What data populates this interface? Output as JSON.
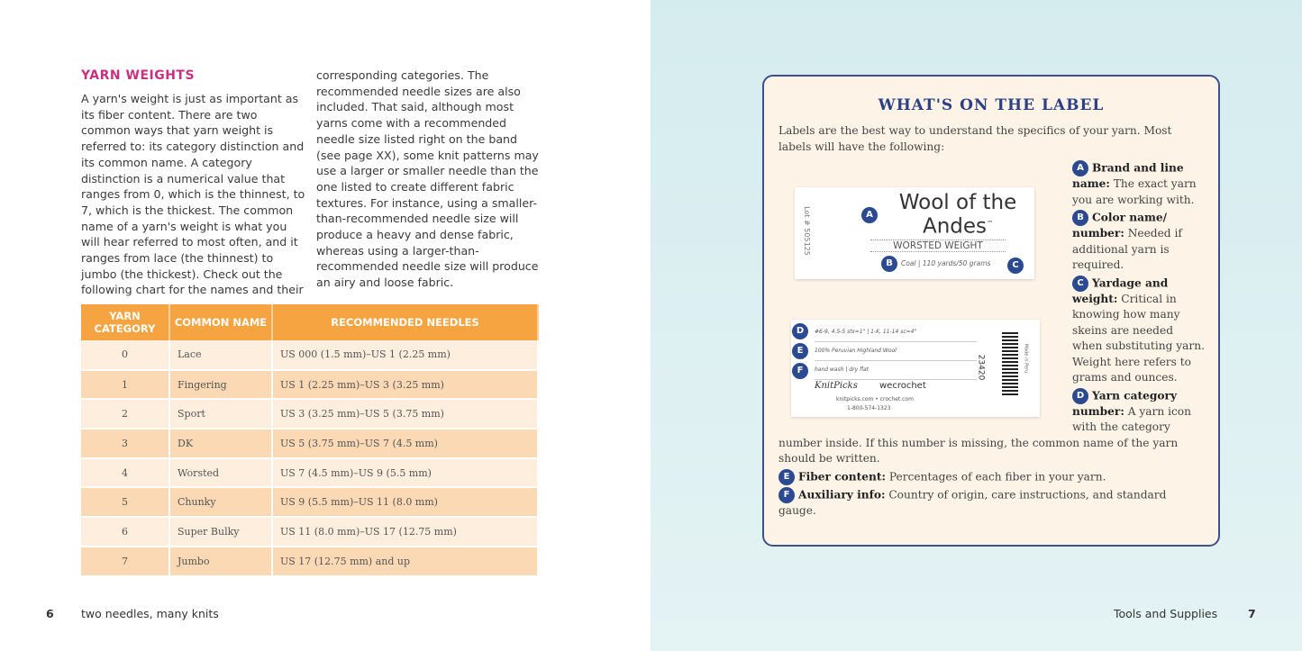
{
  "left_page": {
    "heading": "YARN WEIGHTS",
    "col1": "A yarn's weight is just as important as its fiber content. There are two common ways that yarn weight is referred to: its category distinction and its common name. A category distinction is a numerical value that ranges from 0, which is the thinnest, to 7, which is the thickest. The common name of a yarn's weight is what you will hear referred to most often, and it ranges from lace (the thinnest) to jumbo (the thickest). Check out the following chart for the names and their",
    "col2": "corresponding categories. The recommended needle sizes are also included. That said, although most yarns come with a recommended needle size listed right on the band (see page XX), some knit patterns may use a larger or smaller needle than the one listed to create different fabric textures. For instance, using a smaller-than-recommended needle size will produce a heavy and dense fabric, whereas using a larger-than-recommended needle size will produce an airy and loose fabric.",
    "table": {
      "headers": [
        "YARN CATEGORY",
        "COMMON NAME",
        "RECOMMENDED NEEDLES"
      ],
      "rows": [
        [
          "0",
          "Lace",
          "US 000 (1.5 mm)–US 1 (2.25 mm)"
        ],
        [
          "1",
          "Fingering",
          "US 1 (2.25 mm)–US 3 (3.25 mm)"
        ],
        [
          "2",
          "Sport",
          "US 3 (3.25 mm)–US 5 (3.75 mm)"
        ],
        [
          "3",
          "DK",
          "US 5 (3.75 mm)–US 7 (4.5 mm)"
        ],
        [
          "4",
          "Worsted",
          "US 7 (4.5 mm)–US 9 (5.5 mm)"
        ],
        [
          "5",
          "Chunky",
          "US 9 (5.5 mm)–US 11 (8.0 mm)"
        ],
        [
          "6",
          "Super Bulky",
          "US 11 (8.0 mm)–US 17 (12.75 mm)"
        ],
        [
          "7",
          "Jumbo",
          "US 17 (12.75 mm) and up"
        ]
      ]
    },
    "page_number": "6",
    "running_head": "two needles, many knits"
  },
  "right_page": {
    "box": {
      "heading": "WHAT'S ON THE LABEL",
      "intro": "Labels are the best way to understand the specifics of your yarn. Most labels will have the following:",
      "items": [
        {
          "letter": "A",
          "term": "Brand and line name:",
          "text": "The exact yarn you are working with."
        },
        {
          "letter": "B",
          "term": "Color name/ number:",
          "text": "Needed if additional yarn is required."
        },
        {
          "letter": "C",
          "term": "Yardage and weight:",
          "text": "Critical in knowing how many skeins are needed when substituting yarn. Weight here refers to grams and ounces."
        },
        {
          "letter": "D",
          "term": "Yarn category number:",
          "text": "A yarn icon with the category number inside. If this number is missing, the common name of the yarn should be written."
        },
        {
          "letter": "E",
          "term": "Fiber content:",
          "text": "Percentages of each fiber in your yarn."
        },
        {
          "letter": "F",
          "term": "Auxiliary info:",
          "text": "Country of origin, care instructions, and standard gauge."
        }
      ]
    },
    "label_front": {
      "lot": "Lot # 505125",
      "brand": "Wool of the Andes",
      "tm": "™",
      "weight": "WORSTED WEIGHT",
      "color": "Coal",
      "yardage": "110 yards/50 grams"
    },
    "label_back": {
      "gauge": "#6-9, 4.5-5 sts=1\" | 1-K, 11-14 sc=4\"",
      "fiber": "100% Peruvian Highland Wool",
      "care": "hand wash | dry flat",
      "brand1": "KnitPicks",
      "brand2": "wecrochet",
      "web": "knitpicks.com • crochet.com",
      "phone": "1-800-574-1323",
      "code": "23420",
      "origin": "Made in Peru"
    },
    "page_number": "7",
    "running_head": "Tools and Supplies"
  },
  "colors": {
    "heading_pink": "#c8317f",
    "table_orange": "#f6a342",
    "navy": "#2d4082",
    "box_bg": "#fdf3e7",
    "page_blue": "#d5ecef"
  }
}
